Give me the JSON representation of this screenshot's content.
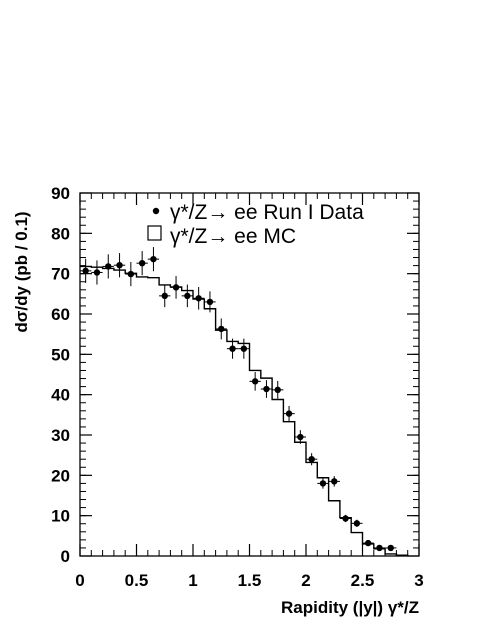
{
  "chart_data": {
    "type": "scatter",
    "title": "",
    "xlabel": "Rapidity (|y|)  γ*/Z",
    "ylabel": "dσ/dy (pb / 0.1)",
    "xlim": [
      0,
      3
    ],
    "ylim": [
      0,
      90
    ],
    "x_ticks": [
      0,
      0.5,
      1,
      1.5,
      2,
      2.5,
      3
    ],
    "x_tick_labels": [
      "0",
      "0.5",
      "1",
      "1.5",
      "2",
      "2.5",
      "3"
    ],
    "y_ticks": [
      0,
      10,
      20,
      30,
      40,
      50,
      60,
      70,
      80,
      90
    ],
    "y_tick_labels": [
      "0",
      "10",
      "20",
      "30",
      "40",
      "50",
      "60",
      "70",
      "80",
      "90"
    ],
    "grid": false,
    "legend_placement": "top-right",
    "legend": [
      {
        "label": "γ*/Z→ ee Run I Data",
        "marker": "dot"
      },
      {
        "label": "γ*/Z→ ee MC",
        "marker": "open-box"
      }
    ],
    "series": [
      {
        "name": "γ*/Z→ ee Run I Data",
        "kind": "points",
        "x": [
          0.05,
          0.15,
          0.25,
          0.35,
          0.45,
          0.55,
          0.65,
          0.75,
          0.85,
          0.95,
          1.05,
          1.15,
          1.25,
          1.35,
          1.45,
          1.55,
          1.65,
          1.75,
          1.85,
          1.95,
          2.05,
          2.15,
          2.25,
          2.35,
          2.45,
          2.55,
          2.65,
          2.75
        ],
        "y": [
          70.7,
          70.3,
          71.8,
          72.1,
          69.9,
          72.6,
          73.6,
          64.5,
          66.6,
          64.5,
          63.9,
          63.0,
          56.3,
          51.4,
          51.4,
          43.3,
          41.4,
          41.2,
          35.3,
          29.5,
          24.0,
          18.0,
          18.5,
          9.3,
          8.1,
          3.2,
          2.0,
          2.0
        ],
        "yerr": [
          3.0,
          3.0,
          3.0,
          3.0,
          3.0,
          3.0,
          3.0,
          2.8,
          2.8,
          2.8,
          2.8,
          2.6,
          2.6,
          2.5,
          2.5,
          2.3,
          2.2,
          2.2,
          1.9,
          1.7,
          1.5,
          1.3,
          1.3,
          0.9,
          0.9,
          0.6,
          0.5,
          0.5
        ]
      },
      {
        "name": "γ*/Z→ ee MC",
        "kind": "histogram",
        "bin_edges": [
          0,
          0.1,
          0.2,
          0.3,
          0.4,
          0.5,
          0.6,
          0.7,
          0.8,
          0.9,
          1.0,
          1.1,
          1.2,
          1.3,
          1.4,
          1.5,
          1.6,
          1.7,
          1.8,
          1.9,
          2.0,
          2.1,
          2.2,
          2.3,
          2.4,
          2.5,
          2.6,
          2.7,
          2.8,
          2.9
        ],
        "values": [
          71.8,
          71.6,
          71.3,
          70.9,
          70.1,
          69.2,
          69.0,
          67.2,
          66.7,
          65.8,
          63.7,
          61.3,
          56.0,
          53.2,
          52.7,
          46.0,
          44.1,
          38.8,
          33.3,
          28.2,
          23.2,
          19.4,
          13.7,
          9.5,
          5.8,
          3.0,
          1.8,
          0.5,
          0.2
        ]
      }
    ]
  }
}
